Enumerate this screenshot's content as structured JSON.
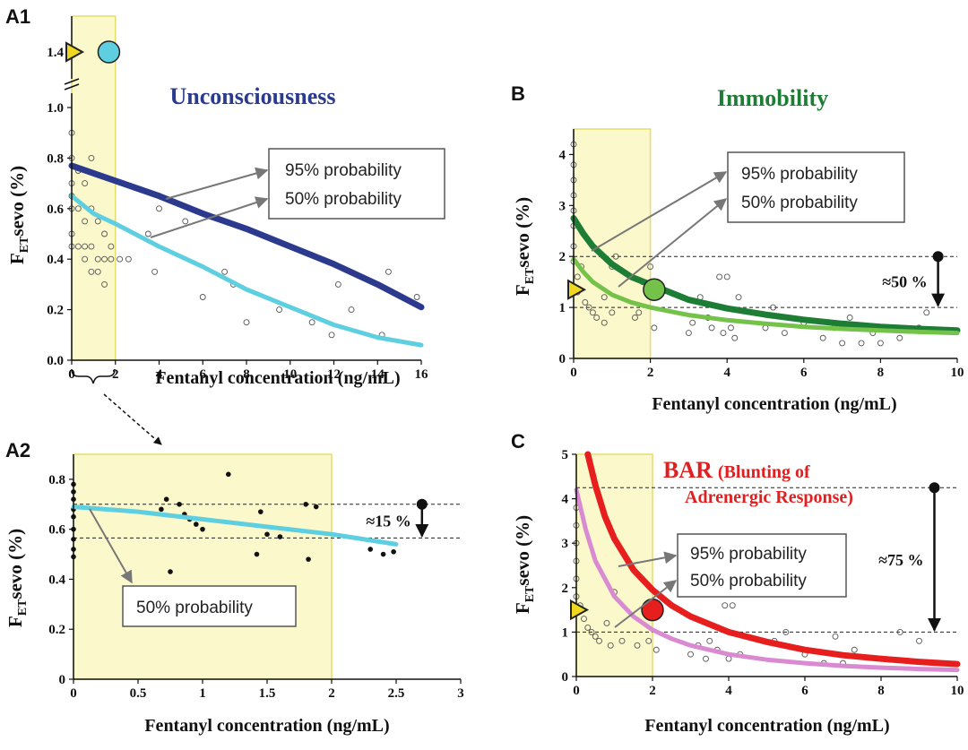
{
  "colors": {
    "shade_fill": "#fbf8cc",
    "shade_stroke": "#e4dd6a",
    "marker": "#f0d820",
    "a_95": "#2b3a8c",
    "a_50": "#5ecfe0",
    "b_95": "#1e7d35",
    "b_50": "#74c24a",
    "c_95": "#e61e1e",
    "c_50": "#d98ad0",
    "unconscious_title": "#2b3a8c",
    "immobility_title": "#1e7d35",
    "bar_title": "#e02020"
  },
  "chart_data": [
    {
      "id": "A1",
      "type": "scatter",
      "panel_label": "A1",
      "title": "Unconsciousness",
      "xlabel": "Fentanyl concentration (ng/mL)",
      "ylabel": {
        "main_pre": "F",
        "sub": "ET",
        "main_post": "sevo (%)"
      },
      "xlim": [
        0,
        16
      ],
      "ylim": [
        0,
        1.4
      ],
      "xticks": [
        "0",
        "2",
        "4",
        "6",
        "8",
        "10",
        "12",
        "14",
        "16"
      ],
      "yticks": [
        "0.0",
        "0.2",
        "0.4",
        "0.6",
        "0.8",
        "1.0",
        "1.4"
      ],
      "axis_break_y": true,
      "shaded_x": [
        0,
        2
      ],
      "series": [
        {
          "name": "95% probability",
          "color_key": "a_95",
          "x": [
            0,
            2,
            4,
            6,
            8,
            10,
            12,
            14,
            16
          ],
          "y": [
            0.77,
            0.71,
            0.65,
            0.58,
            0.52,
            0.45,
            0.38,
            0.3,
            0.21
          ]
        },
        {
          "name": "50% probability",
          "color_key": "a_50",
          "x": [
            0,
            1,
            2,
            4,
            6,
            8,
            10,
            12,
            14,
            16
          ],
          "y": [
            0.65,
            0.58,
            0.54,
            0.45,
            0.37,
            0.28,
            0.21,
            0.14,
            0.09,
            0.06
          ]
        }
      ],
      "points": {
        "x": [
          0,
          0,
          0,
          0,
          0,
          0,
          0,
          0.3,
          0.3,
          0.3,
          0.6,
          0.6,
          0.6,
          0.6,
          0.9,
          0.9,
          0.9,
          0.9,
          1.2,
          1.2,
          1.2,
          1.5,
          1.5,
          1.5,
          1.8,
          1.8,
          2.2,
          2.6,
          3.5,
          3.8,
          4.0,
          5.2,
          6.0,
          7.0,
          7.4,
          8.0,
          9.5,
          11.0,
          11.9,
          12.2,
          12.8,
          14.2,
          14.5,
          15.8
        ],
        "y": [
          0.9,
          0.8,
          0.7,
          0.65,
          0.6,
          0.5,
          0.45,
          0.75,
          0.6,
          0.45,
          0.7,
          0.55,
          0.45,
          0.4,
          0.8,
          0.6,
          0.45,
          0.35,
          0.55,
          0.4,
          0.35,
          0.5,
          0.4,
          0.3,
          0.45,
          0.4,
          0.4,
          0.4,
          0.5,
          0.35,
          0.6,
          0.55,
          0.25,
          0.35,
          0.3,
          0.15,
          0.2,
          0.15,
          0.1,
          0.3,
          0.2,
          0.1,
          0.35,
          0.25
        ]
      },
      "marker_x": 0,
      "marker_y": 1.4,
      "circle": {
        "x": 1.7,
        "y": 1.4,
        "color_key": "a_50"
      },
      "legend": [
        "95% probability",
        "50% probability"
      ]
    },
    {
      "id": "A2",
      "type": "scatter",
      "panel_label": "A2",
      "xlabel": "Fentanyl concentration (ng/mL)",
      "ylabel": {
        "main_pre": "F",
        "sub": "ET",
        "main_post": "sevo (%)"
      },
      "xlim": [
        0,
        3
      ],
      "ylim": [
        0,
        0.9
      ],
      "xticks": [
        "0",
        "0.5",
        "1",
        "1.5",
        "2",
        "2.5",
        "3"
      ],
      "yticks": [
        "0",
        "0.2",
        "0.4",
        "0.6",
        "0.8"
      ],
      "shaded_x": [
        0,
        2
      ],
      "series": [
        {
          "name": "50% probability",
          "color_key": "a_50",
          "x": [
            0,
            0.5,
            1,
            1.5,
            2,
            2.5
          ],
          "y": [
            0.69,
            0.67,
            0.64,
            0.61,
            0.58,
            0.54
          ]
        }
      ],
      "points": {
        "x": [
          0,
          0,
          0,
          0,
          0,
          0,
          0,
          0,
          0,
          0.68,
          0.72,
          0.75,
          0.82,
          0.86,
          0.9,
          0.95,
          1.0,
          1.2,
          1.42,
          1.45,
          1.5,
          1.6,
          1.8,
          1.82,
          1.88,
          2.3,
          2.4,
          2.48
        ],
        "y": [
          0.78,
          0.75,
          0.72,
          0.68,
          0.65,
          0.6,
          0.56,
          0.52,
          0.49,
          0.68,
          0.72,
          0.43,
          0.7,
          0.66,
          0.64,
          0.62,
          0.6,
          0.82,
          0.5,
          0.67,
          0.58,
          0.57,
          0.7,
          0.48,
          0.69,
          0.52,
          0.5,
          0.51
        ]
      },
      "dashed_y": [
        0.7,
        0.565
      ],
      "pct_arrow": {
        "label": "≈15 %",
        "x": 2.7
      },
      "legend": [
        "50% probability"
      ]
    },
    {
      "id": "B",
      "type": "scatter",
      "panel_label": "B",
      "title": "Immobility",
      "xlabel": "Fentanyl concentration (ng/mL)",
      "ylabel": {
        "main_pre": "F",
        "sub": "ET",
        "main_post": "sevo (%)"
      },
      "xlim": [
        0,
        10
      ],
      "ylim": [
        0,
        4.5
      ],
      "xticks": [
        "0",
        "2",
        "4",
        "6",
        "8",
        "10"
      ],
      "yticks": [
        "0",
        "1",
        "2",
        "3",
        "4"
      ],
      "shaded_x": [
        0,
        2
      ],
      "series": [
        {
          "name": "95% probability",
          "color_key": "b_95",
          "x": [
            0,
            0.25,
            0.5,
            1,
            1.5,
            2,
            3,
            4,
            5,
            6,
            7,
            8,
            9,
            10
          ],
          "y": [
            2.75,
            2.45,
            2.2,
            1.85,
            1.6,
            1.45,
            1.15,
            0.98,
            0.86,
            0.76,
            0.68,
            0.62,
            0.58,
            0.55
          ]
        },
        {
          "name": "50% probability",
          "color_key": "b_50",
          "x": [
            0,
            0.25,
            0.5,
            1,
            1.5,
            2,
            3,
            4,
            5,
            6,
            7,
            8,
            9,
            10
          ],
          "y": [
            1.95,
            1.7,
            1.5,
            1.25,
            1.1,
            1.0,
            0.85,
            0.75,
            0.68,
            0.62,
            0.58,
            0.55,
            0.52,
            0.5
          ]
        }
      ],
      "points": {
        "x": [
          0,
          0,
          0,
          0,
          0,
          0,
          0,
          0,
          0.1,
          0.1,
          0.2,
          0.3,
          0.4,
          0.5,
          0.6,
          0.8,
          0.8,
          1.0,
          1.0,
          1.1,
          1.6,
          1.7,
          1.8,
          2.0,
          2.1,
          3.0,
          3.1,
          3.3,
          3.5,
          3.6,
          3.8,
          3.9,
          4.0,
          4.1,
          4.2,
          4.3,
          5.0,
          5.2,
          5.5,
          6.0,
          6.5,
          6.8,
          7.0,
          7.2,
          7.5,
          7.8,
          8.0,
          8.3,
          8.5,
          9.0,
          9.2
        ],
        "y": [
          4.2,
          3.8,
          3.5,
          3.2,
          2.9,
          2.6,
          2.2,
          1.9,
          1.6,
          1.3,
          1.8,
          1.1,
          1.0,
          0.9,
          0.8,
          1.2,
          0.7,
          0.9,
          1.8,
          2.0,
          0.8,
          0.9,
          1.5,
          1.8,
          0.6,
          0.5,
          0.7,
          1.2,
          0.8,
          0.6,
          1.6,
          0.5,
          1.6,
          0.6,
          0.4,
          1.2,
          0.6,
          1.0,
          0.5,
          0.7,
          0.4,
          0.6,
          0.3,
          0.8,
          0.3,
          0.5,
          0.3,
          0.6,
          0.4,
          0.6,
          0.9
        ]
      },
      "dashed_y": [
        2.0,
        1.0
      ],
      "pct_arrow": {
        "label": "≈50 %",
        "x": 9.5
      },
      "marker_x": 0,
      "marker_y": 1.35,
      "circle": {
        "x": 2.1,
        "y": 1.35,
        "color_key": "b_50"
      },
      "legend": [
        "95% probability",
        "50% probability"
      ]
    },
    {
      "id": "C",
      "type": "scatter",
      "panel_label": "C",
      "title": "BAR",
      "title_paren": "(Blunting of",
      "title_line2": "Adrenergic Response)",
      "xlabel": "Fentanyl concentration (ng/mL)",
      "ylabel": {
        "main_pre": "F",
        "sub": "ET",
        "main_post": "sevo (%)"
      },
      "xlim": [
        0,
        10
      ],
      "ylim": [
        0,
        5
      ],
      "xticks": [
        "0",
        "2",
        "4",
        "6",
        "8",
        "10"
      ],
      "yticks": [
        "0",
        "1",
        "2",
        "3",
        "4",
        "5"
      ],
      "shaded_x": [
        0,
        2
      ],
      "series": [
        {
          "name": "95% probability",
          "color_key": "c_95",
          "x": [
            0.3,
            0.5,
            0.75,
            1,
            1.5,
            2,
            2.5,
            3,
            4,
            5,
            6,
            7,
            8,
            9,
            10
          ],
          "y": [
            5.0,
            4.3,
            3.6,
            3.1,
            2.4,
            1.95,
            1.6,
            1.35,
            1.0,
            0.78,
            0.6,
            0.48,
            0.4,
            0.33,
            0.28
          ]
        },
        {
          "name": "50% probability",
          "color_key": "c_50",
          "x": [
            0,
            0.25,
            0.5,
            1,
            1.5,
            2,
            2.5,
            3,
            4,
            5,
            6,
            7,
            8,
            9,
            10
          ],
          "y": [
            4.2,
            3.3,
            2.6,
            1.8,
            1.35,
            1.05,
            0.85,
            0.7,
            0.5,
            0.38,
            0.3,
            0.24,
            0.2,
            0.17,
            0.15
          ]
        }
      ],
      "points": {
        "x": [
          0,
          0,
          0,
          0,
          0,
          0,
          0.1,
          0.2,
          0.3,
          0.4,
          0.5,
          0.6,
          0.8,
          0.9,
          1.0,
          1.2,
          1.6,
          1.8,
          1.9,
          2.1,
          3.0,
          3.2,
          3.4,
          3.5,
          3.7,
          3.9,
          4.0,
          4.1,
          4.3,
          5.2,
          5.5,
          6.0,
          6.5,
          6.8,
          7.0,
          7.3,
          8.0,
          8.5,
          9.0
        ],
        "y": [
          3.8,
          3.4,
          3.0,
          2.6,
          2.2,
          1.8,
          1.6,
          1.3,
          1.1,
          1.0,
          0.9,
          0.8,
          1.2,
          0.7,
          1.9,
          0.8,
          0.7,
          1.5,
          0.8,
          0.6,
          0.5,
          0.7,
          0.4,
          0.8,
          0.6,
          1.6,
          0.4,
          1.6,
          0.5,
          0.8,
          1.0,
          0.5,
          0.3,
          0.9,
          0.3,
          0.6,
          0.4,
          1.0,
          0.8
        ]
      },
      "dashed_y": [
        4.25,
        1.0
      ],
      "pct_arrow": {
        "label": "≈75 %",
        "x": 9.4
      },
      "marker_x": 0,
      "marker_y": 1.5,
      "circle": {
        "x": 2.0,
        "y": 1.5,
        "color_key": "c_95"
      },
      "legend": [
        "95% probability",
        "50% probability"
      ]
    }
  ]
}
